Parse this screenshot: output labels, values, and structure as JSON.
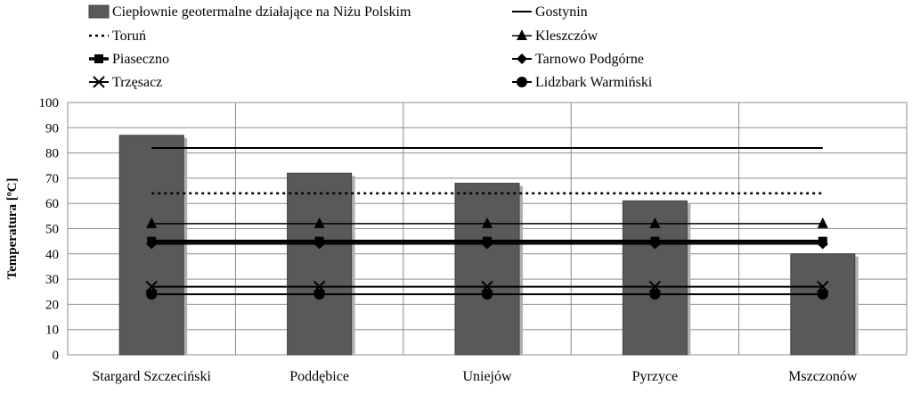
{
  "chart_data": {
    "type": "bar",
    "title": "",
    "ylabel": "Temperatura [ºC]",
    "xlabel": "",
    "ylim": [
      0,
      100
    ],
    "yticks": [
      0,
      10,
      20,
      30,
      40,
      50,
      60,
      70,
      80,
      90,
      100
    ],
    "grid": true,
    "legend_position": "top",
    "categories": [
      "Stargard Szczeciński",
      "Poddębice",
      "Uniejów",
      "Pyrzyce",
      "Mszczonów"
    ],
    "bar_series": {
      "name": "Ciepłownie geotermalne działające na Niżu Polskim",
      "values": [
        87,
        72,
        68,
        61,
        40
      ],
      "color": "#595959"
    },
    "line_series": [
      {
        "name": "Gostynin",
        "value": 82,
        "style": "solid",
        "marker": "none",
        "width": 2
      },
      {
        "name": "Toruń",
        "value": 64,
        "style": "dotted",
        "marker": "none",
        "width": 2.5
      },
      {
        "name": "Kleszczów",
        "value": 52,
        "style": "solid",
        "marker": "triangle",
        "width": 1.5
      },
      {
        "name": "Piaseczno",
        "value": 45,
        "style": "solid",
        "marker": "square",
        "width": 3.5
      },
      {
        "name": "Tarnowo Podgórne",
        "value": 44,
        "style": "solid",
        "marker": "diamond",
        "width": 2
      },
      {
        "name": "Trzęsacz",
        "value": 27,
        "style": "solid",
        "marker": "x",
        "width": 2
      },
      {
        "name": "Lidzbark Warmiński",
        "value": 24,
        "style": "solid",
        "marker": "circle",
        "width": 2
      }
    ],
    "legend_order": [
      "bar",
      "Gostynin",
      "Toruń",
      "Kleszczów",
      "Piaseczno",
      "Tarnowo Podgórne",
      "Trzęsacz",
      "Lidzbark Warmiński"
    ]
  }
}
